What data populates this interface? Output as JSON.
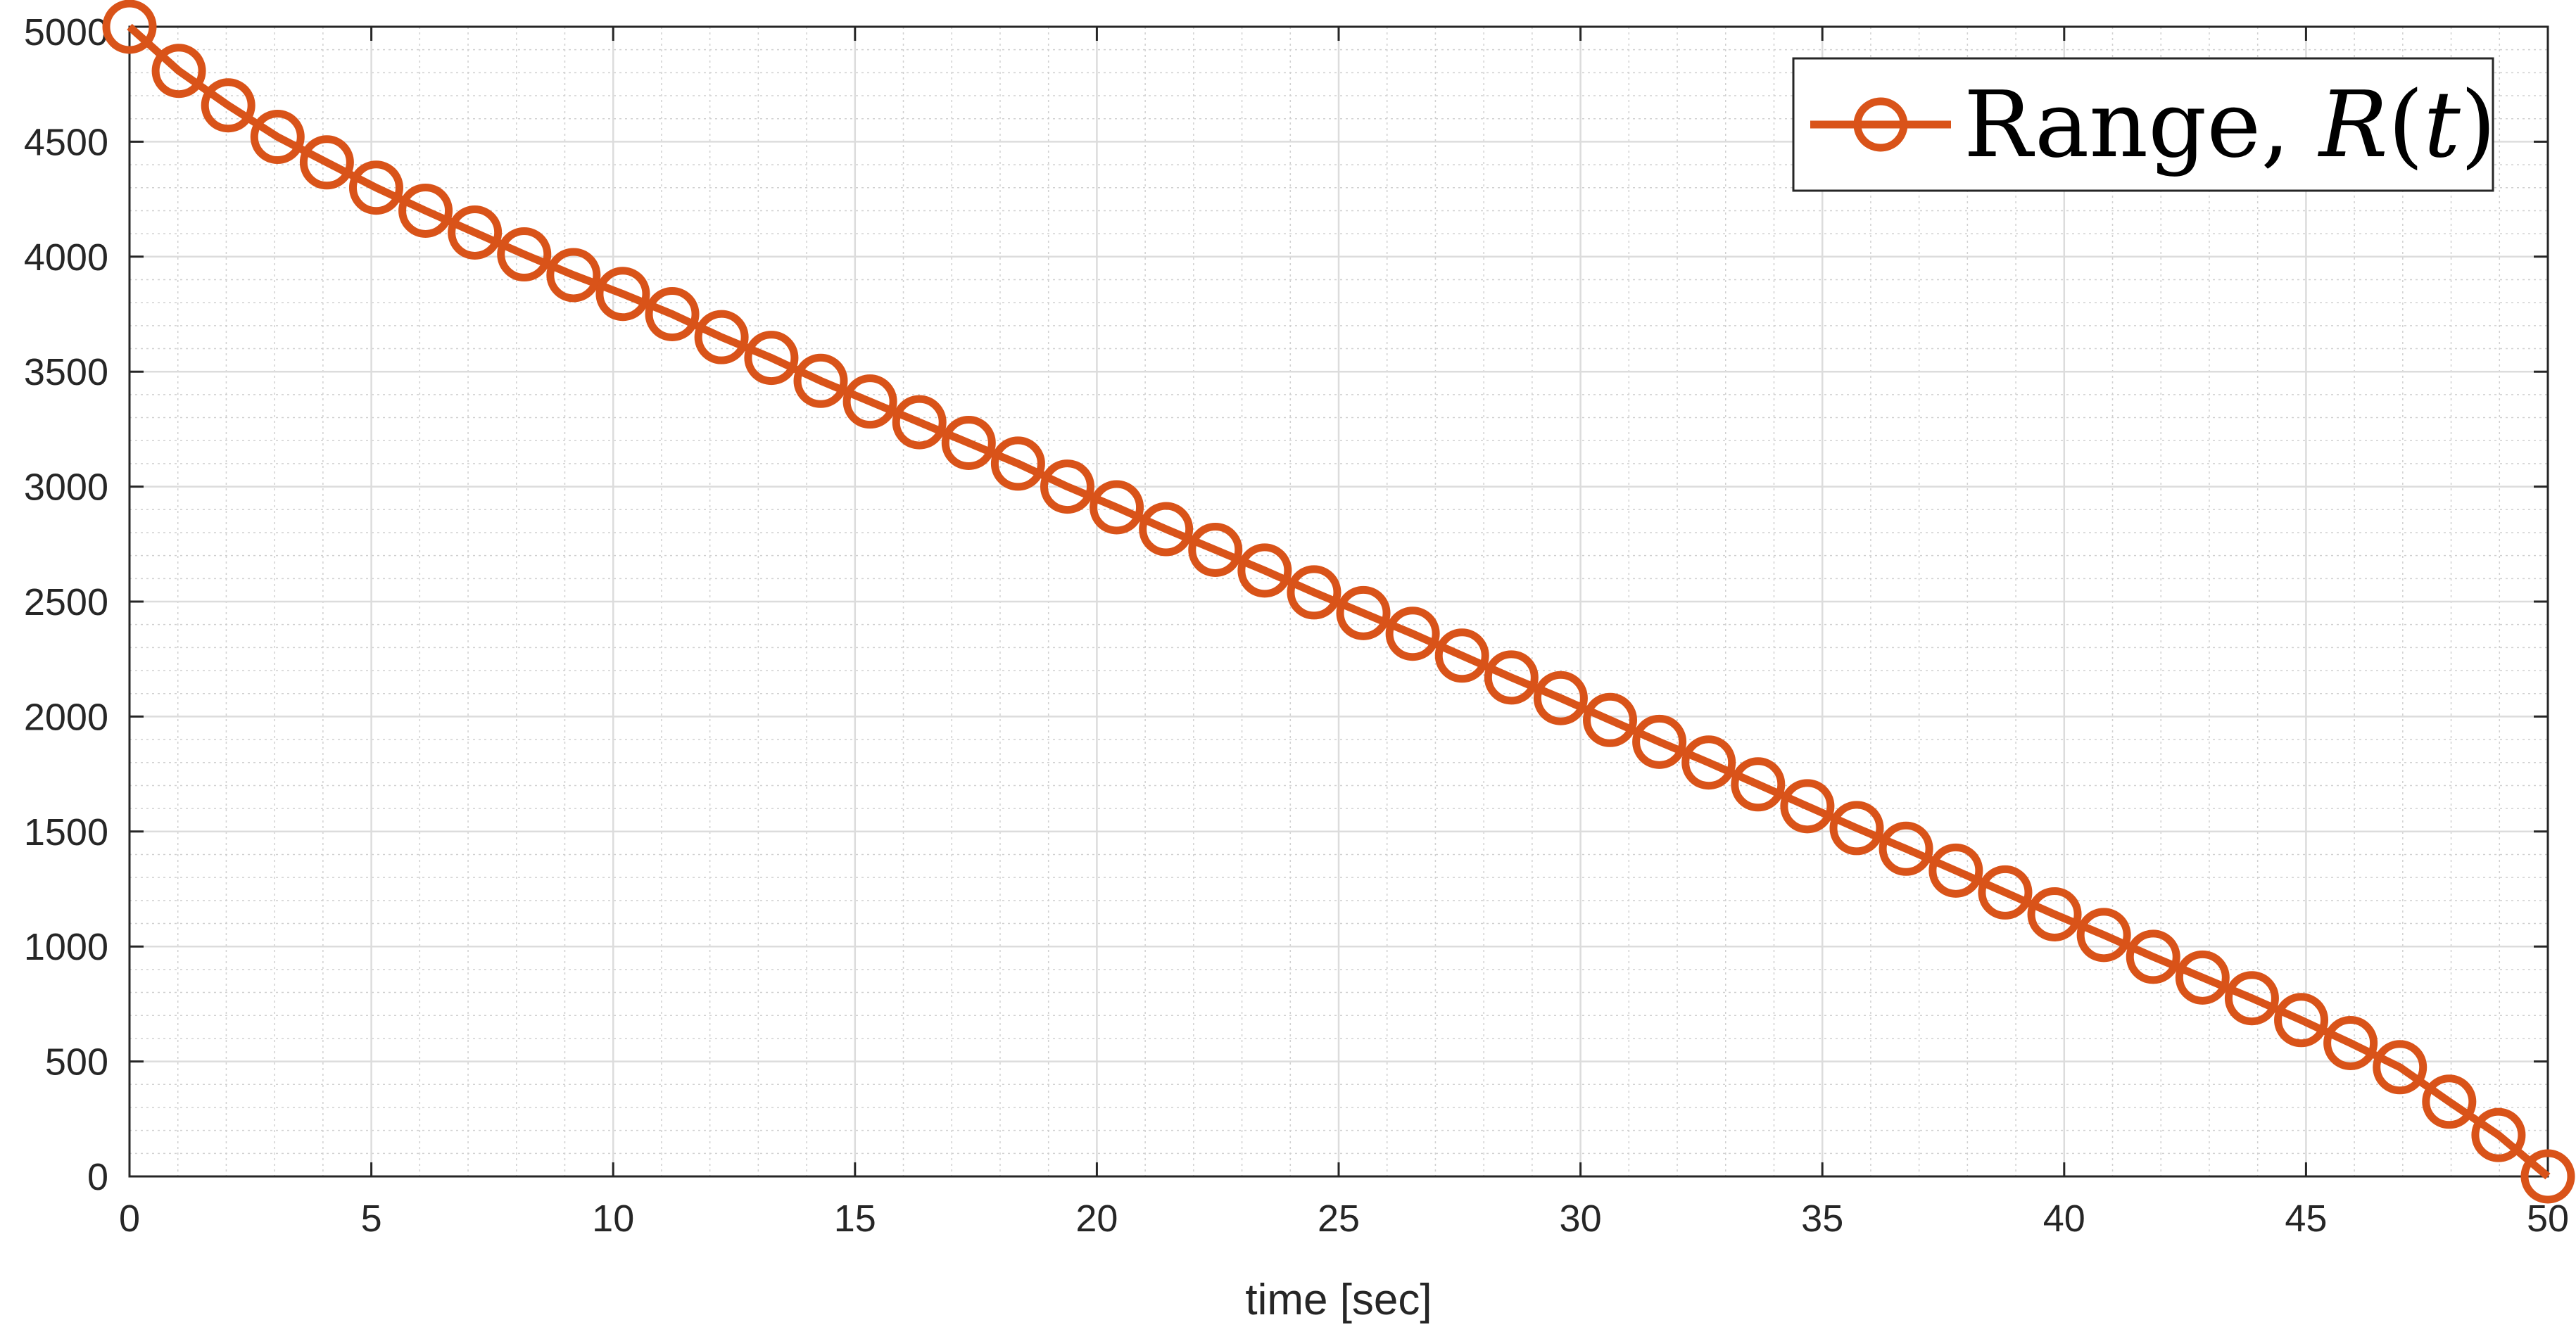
{
  "chart_data": {
    "type": "line",
    "title": "",
    "xlabel": "time [sec]",
    "ylabel": "",
    "xlim": [
      0,
      50
    ],
    "ylim": [
      0,
      5000
    ],
    "xticks": [
      0,
      5,
      10,
      15,
      20,
      25,
      30,
      35,
      40,
      45,
      50
    ],
    "yticks": [
      0,
      500,
      1000,
      1500,
      2000,
      2500,
      3000,
      3500,
      4000,
      4500,
      5000
    ],
    "xtick_labels": [
      "0",
      "5",
      "10",
      "15",
      "20",
      "25",
      "30",
      "35",
      "40",
      "45",
      "50"
    ],
    "ytick_labels": [
      "0",
      "500",
      "1000",
      "1500",
      "2000",
      "2500",
      "3000",
      "3500",
      "4000",
      "4500",
      "5000"
    ],
    "grid": "major and minor",
    "legend_position": "top-right",
    "legend": {
      "prefix": "Range, ",
      "math_var": "R",
      "paren_open": "(",
      "math_arg": "t",
      "paren_close": ")"
    },
    "series": [
      {
        "name": "Range, R(t)",
        "color": "#D95319",
        "marker": "circle",
        "x": [
          0,
          1.02,
          2.04,
          3.06,
          4.08,
          5.1,
          6.12,
          7.14,
          8.16,
          9.18,
          10.2,
          11.22,
          12.24,
          13.27,
          14.29,
          15.31,
          16.33,
          17.35,
          18.37,
          19.39,
          20.41,
          21.43,
          22.45,
          23.47,
          24.49,
          25.51,
          26.53,
          27.55,
          28.57,
          29.59,
          30.61,
          31.63,
          32.65,
          33.67,
          34.69,
          35.71,
          36.73,
          37.76,
          38.78,
          39.8,
          40.82,
          41.84,
          42.86,
          43.88,
          44.9,
          45.92,
          46.94,
          47.96,
          48.98,
          50.0
        ],
        "values": [
          5000,
          4808,
          4658,
          4521,
          4410,
          4300,
          4200,
          4105,
          4010,
          3920,
          3838,
          3750,
          3650,
          3560,
          3460,
          3370,
          3280,
          3190,
          3100,
          3000,
          2910,
          2815,
          2725,
          2635,
          2540,
          2450,
          2360,
          2265,
          2170,
          2080,
          1985,
          1890,
          1800,
          1705,
          1610,
          1515,
          1425,
          1330,
          1235,
          1140,
          1050,
          955,
          865,
          775,
          680,
          580,
          475,
          325,
          180,
          0
        ]
      }
    ]
  }
}
